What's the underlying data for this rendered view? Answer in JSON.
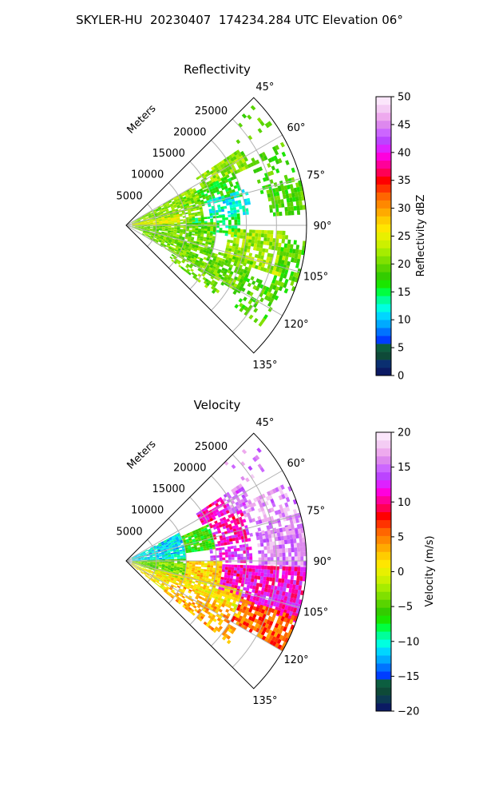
{
  "title": "SKYLER-HU  20230407  174234.284 UTC Elevation 06°",
  "chart_data": [
    {
      "type": "heatmap",
      "subtype": "polar-sector",
      "title": "Reflectivity",
      "range_label": "Meters",
      "range_ticks": [
        5000,
        10000,
        15000,
        20000,
        25000
      ],
      "range_tick_labels": [
        "5000",
        "10000",
        "15000",
        "20000",
        "25000"
      ],
      "range_max": 30000,
      "azimuth_range": [
        45,
        135
      ],
      "azimuth_ticks": [
        45,
        60,
        75,
        90,
        105,
        120,
        135
      ],
      "azimuth_tick_labels": [
        "45°",
        "60°",
        "75°",
        "90°",
        "105°",
        "120°",
        "135°"
      ],
      "grid": true,
      "colorbar": {
        "label": "Reflectivity dBZ",
        "range": [
          0,
          50
        ],
        "ticks": [
          0,
          5,
          10,
          15,
          20,
          25,
          30,
          35,
          40,
          45,
          50
        ],
        "tick_labels": [
          "0",
          "5",
          "10",
          "15",
          "20",
          "25",
          "30",
          "35",
          "40",
          "45",
          "50"
        ],
        "colors": [
          "#0b1a63",
          "#0a2f70",
          "#0e4a38",
          "#0c5e40",
          "#003dff",
          "#0073ff",
          "#00aaff",
          "#00d6ff",
          "#00ffe0",
          "#00ff9a",
          "#00ff40",
          "#1ae600",
          "#33cc00",
          "#59d400",
          "#80e000",
          "#a6ec00",
          "#ccf000",
          "#e8f000",
          "#ffe600",
          "#ffcc00",
          "#ffaa00",
          "#ff8800",
          "#ff6600",
          "#ff3300",
          "#ff0000",
          "#ff0055",
          "#ff0099",
          "#ff00dd",
          "#dd22ff",
          "#bb44ff",
          "#cc66ff",
          "#dd88ee",
          "#eeaaee",
          "#f4ccf4",
          "#fbe6fb"
        ]
      },
      "regions": [
        {
          "az": [
            45,
            56
          ],
          "r": [
            23000,
            29500
          ],
          "value": 19,
          "density": 0.12
        },
        {
          "az": [
            56,
            64
          ],
          "r": [
            14000,
            23000
          ],
          "value": 21,
          "density": 0.9
        },
        {
          "az": [
            64,
            75
          ],
          "r": [
            10000,
            20000
          ],
          "value": 17,
          "density": 0.6
        },
        {
          "az": [
            62,
            76
          ],
          "r": [
            23000,
            29800
          ],
          "value": 18,
          "density": 0.35
        },
        {
          "az": [
            73,
            85
          ],
          "r": [
            14000,
            21000
          ],
          "value": 12,
          "density": 0.65
        },
        {
          "az": [
            76,
            86
          ],
          "r": [
            24000,
            30000
          ],
          "value": 19,
          "density": 0.8
        },
        {
          "az": [
            60,
            88
          ],
          "r": [
            1000,
            13000
          ],
          "value": 21,
          "density": 0.85
        },
        {
          "az": [
            78,
            90
          ],
          "r": [
            1000,
            9000
          ],
          "value": 25,
          "density": 0.9
        },
        {
          "az": [
            84,
            96
          ],
          "r": [
            11000,
            19000
          ],
          "value": 15,
          "density": 0.7
        },
        {
          "az": [
            88,
            110
          ],
          "r": [
            1000,
            15000
          ],
          "value": 20,
          "density": 0.9
        },
        {
          "az": [
            92,
            108
          ],
          "r": [
            17000,
            27000
          ],
          "value": 22,
          "density": 0.8
        },
        {
          "az": [
            95,
            112
          ],
          "r": [
            26000,
            30000
          ],
          "value": 19,
          "density": 0.55
        },
        {
          "az": [
            106,
            120
          ],
          "r": [
            3000,
            22000
          ],
          "value": 20,
          "density": 0.8
        },
        {
          "az": [
            116,
            128
          ],
          "r": [
            9000,
            19000
          ],
          "value": 20,
          "density": 0.55
        },
        {
          "az": [
            112,
            126
          ],
          "r": [
            21000,
            28000
          ],
          "value": 19,
          "density": 0.35
        }
      ]
    },
    {
      "type": "heatmap",
      "subtype": "polar-sector",
      "title": "Velocity",
      "range_label": "Meters",
      "range_ticks": [
        5000,
        10000,
        15000,
        20000,
        25000
      ],
      "range_tick_labels": [
        "5000",
        "10000",
        "15000",
        "20000",
        "25000"
      ],
      "range_max": 30000,
      "azimuth_range": [
        45,
        135
      ],
      "azimuth_ticks": [
        45,
        60,
        75,
        90,
        105,
        120,
        135
      ],
      "azimuth_tick_labels": [
        "45°",
        "60°",
        "75°",
        "90°",
        "105°",
        "120°",
        "135°"
      ],
      "grid": true,
      "colorbar": {
        "label": "Velocity (m/s)",
        "range": [
          -20,
          20
        ],
        "ticks": [
          -20,
          -15,
          -10,
          -5,
          0,
          5,
          10,
          15,
          20
        ],
        "tick_labels": [
          "−20",
          "−15",
          "−10",
          "−5",
          "0",
          "5",
          "10",
          "15",
          "20"
        ],
        "colors": [
          "#0b1a63",
          "#0c3a52",
          "#0e4a38",
          "#0c5e40",
          "#003dff",
          "#0073ff",
          "#00aaff",
          "#00d6ff",
          "#00ffe0",
          "#00ff9a",
          "#00ff40",
          "#1ae600",
          "#33cc00",
          "#59d400",
          "#80e000",
          "#a6ec00",
          "#ccf000",
          "#e8f000",
          "#ffe600",
          "#ffcc00",
          "#ffaa00",
          "#ff8800",
          "#ff6600",
          "#ff3300",
          "#ff0000",
          "#ff0055",
          "#ff0099",
          "#ff00dd",
          "#dd22ff",
          "#bb44ff",
          "#cc66ff",
          "#dd88ee",
          "#eeaaee",
          "#f4ccf4",
          "#fbe6fb"
        ]
      },
      "regions": [
        {
          "az": [
            45,
            56
          ],
          "r": [
            23000,
            29500
          ],
          "value": 16,
          "density": 0.2
        },
        {
          "az": [
            56,
            64
          ],
          "r": [
            14000,
            19000
          ],
          "value": 11,
          "density": 0.9
        },
        {
          "az": [
            56,
            66
          ],
          "r": [
            19000,
            23000
          ],
          "value": 15,
          "density": 0.7
        },
        {
          "az": [
            62,
            88
          ],
          "r": [
            1000,
            10000
          ],
          "value": -11,
          "density": 0.95
        },
        {
          "az": [
            66,
            82
          ],
          "r": [
            10000,
            15000
          ],
          "value": -6,
          "density": 0.9
        },
        {
          "az": [
            66,
            80
          ],
          "r": [
            15000,
            21000
          ],
          "value": 11,
          "density": 0.75
        },
        {
          "az": [
            64,
            80
          ],
          "r": [
            21000,
            29800
          ],
          "value": 16,
          "density": 0.5
        },
        {
          "az": [
            78,
            92
          ],
          "r": [
            22000,
            30000
          ],
          "value": 16,
          "density": 0.85
        },
        {
          "az": [
            82,
            90
          ],
          "r": [
            14000,
            21000
          ],
          "value": 13,
          "density": 0.7
        },
        {
          "az": [
            88,
            108
          ],
          "r": [
            1000,
            10000
          ],
          "value": -4,
          "density": 0.95
        },
        {
          "az": [
            90,
            104
          ],
          "r": [
            10000,
            16000
          ],
          "value": 2,
          "density": 0.9
        },
        {
          "az": [
            92,
            110
          ],
          "r": [
            16000,
            30000
          ],
          "value": 11,
          "density": 0.9
        },
        {
          "az": [
            104,
            114
          ],
          "r": [
            5000,
            20000
          ],
          "value": 1,
          "density": 0.85
        },
        {
          "az": [
            108,
            120
          ],
          "r": [
            20000,
            30000
          ],
          "value": 6,
          "density": 0.8
        },
        {
          "az": [
            114,
            128
          ],
          "r": [
            8000,
            22000
          ],
          "value": 3,
          "density": 0.55
        },
        {
          "az": [
            110,
            128
          ],
          "r": [
            1000,
            8000
          ],
          "value": 1,
          "density": 0.75
        }
      ]
    }
  ]
}
